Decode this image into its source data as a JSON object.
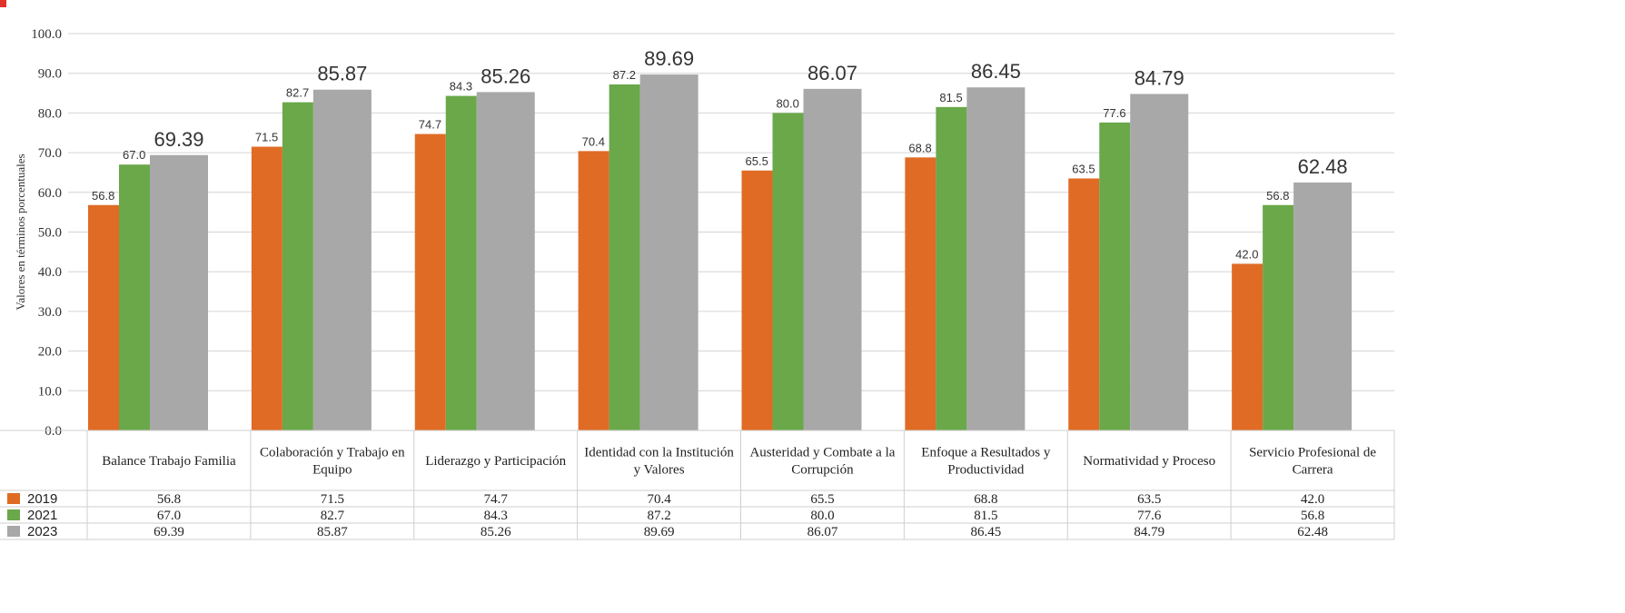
{
  "colors": {
    "2019": "#e06b25",
    "2021": "#6aa84a",
    "2023": "#a8a8a8"
  },
  "chart_data": {
    "type": "bar",
    "ylabel": "Valores en términos porcentuales",
    "ylim": [
      0,
      100
    ],
    "yticks": [
      "0.0",
      "10.0",
      "20.0",
      "30.0",
      "40.0",
      "50.0",
      "60.0",
      "70.0",
      "80.0",
      "90.0",
      "100.0"
    ],
    "grid": true,
    "legend": "bottom-left (data table)",
    "categories": [
      [
        "Balance Trabajo Familia"
      ],
      [
        "Colaboración y Trabajo en",
        "Equipo"
      ],
      [
        "Liderazgo y Participación"
      ],
      [
        "Identidad con la Institución",
        "y Valores"
      ],
      [
        "Austeridad y Combate a la",
        "Corrupción"
      ],
      [
        "Enfoque a Resultados y",
        "Productividad"
      ],
      [
        "Normatividad y Proceso"
      ],
      [
        "Servicio Profesional de",
        "Carrera"
      ]
    ],
    "series": [
      {
        "name": "2019",
        "values": [
          56.8,
          71.5,
          74.7,
          70.4,
          65.5,
          68.8,
          63.5,
          42.0
        ],
        "labels": [
          "56.8",
          "71.5",
          "74.7",
          "70.4",
          "65.5",
          "68.8",
          "63.5",
          "42.0"
        ]
      },
      {
        "name": "2021",
        "values": [
          67.0,
          82.7,
          84.3,
          87.2,
          80.0,
          81.5,
          77.6,
          56.8
        ],
        "labels": [
          "67.0",
          "82.7",
          "84.3",
          "87.2",
          "80.0",
          "81.5",
          "77.6",
          "56.8"
        ]
      },
      {
        "name": "2023",
        "values": [
          69.39,
          85.87,
          85.26,
          89.69,
          86.07,
          86.45,
          84.79,
          62.48
        ],
        "labels": [
          "69.39",
          "85.87",
          "85.26",
          "89.69",
          "86.07",
          "86.45",
          "84.79",
          "62.48"
        ]
      }
    ]
  }
}
